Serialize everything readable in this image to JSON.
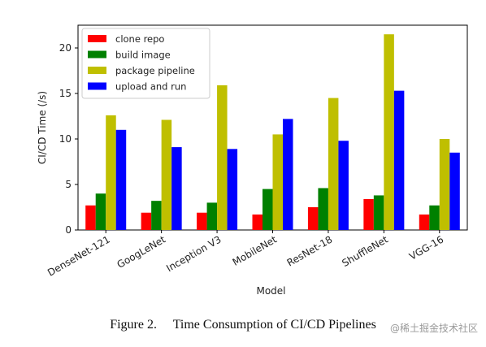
{
  "chart_data": {
    "type": "bar",
    "categories": [
      "DenseNet-121",
      "GoogLeNet",
      "Inception V3",
      "MobileNet",
      "ResNet-18",
      "ShuffleNet",
      "VGG-16"
    ],
    "series": [
      {
        "name": "clone repo",
        "color": "#ff0000",
        "values": [
          2.7,
          1.9,
          1.9,
          1.7,
          2.5,
          3.4,
          1.7
        ]
      },
      {
        "name": "build image",
        "color": "#008000",
        "values": [
          4.0,
          3.2,
          3.0,
          4.5,
          4.6,
          3.8,
          2.7
        ]
      },
      {
        "name": "package pipeline",
        "color": "#bfbf00",
        "values": [
          12.6,
          12.1,
          15.9,
          10.5,
          14.5,
          21.5,
          10.0
        ]
      },
      {
        "name": "upload and run",
        "color": "#0000ff",
        "values": [
          11.0,
          9.1,
          8.9,
          12.2,
          9.8,
          15.3,
          8.5
        ]
      }
    ],
    "title": "",
    "xlabel": "Model",
    "ylabel": "CI/CD Time (/s)",
    "ylim": [
      0,
      22.5
    ],
    "yticks": [
      "0",
      "5",
      "10",
      "15",
      "20"
    ],
    "grid": false,
    "legend": "top-left"
  },
  "caption": "Figure 2.     Time Consumption of CI/CD Pipelines",
  "watermark": "@稀土掘金技术社区"
}
